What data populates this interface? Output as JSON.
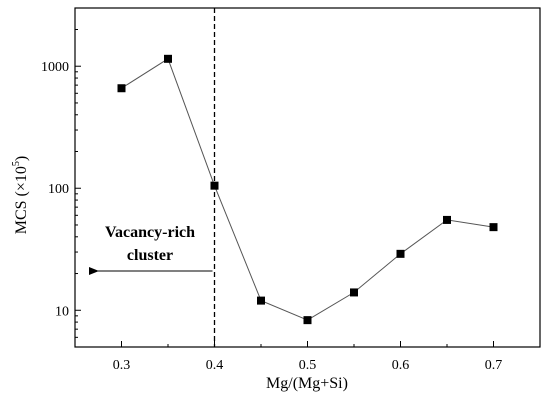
{
  "chart_data": {
    "type": "line",
    "xlabel": "Mg/(Mg+Si)",
    "ylabel": "MCS (×10",
    "ylabel_sup": "5",
    "ylabel_close": ")",
    "y_scale": "log",
    "xlim": [
      0.25,
      0.75
    ],
    "ylim": [
      5,
      3000
    ],
    "x_ticks": [
      "0.3",
      "0.4",
      "0.5",
      "0.6",
      "0.7"
    ],
    "y_ticks": [
      "10",
      "100",
      "1000"
    ],
    "grid": false,
    "series": [
      {
        "marker": "square",
        "x": [
          0.3,
          0.35,
          0.4,
          0.45,
          0.5,
          0.55,
          0.6,
          0.65,
          0.7
        ],
        "y": [
          660,
          1150,
          105,
          12,
          8.3,
          14,
          29,
          55,
          48
        ]
      }
    ],
    "reference_line": {
      "x": 0.4,
      "style": "dashed"
    },
    "annotation": {
      "line1": "Vacancy-rich",
      "line2": "cluster",
      "arrow": "left"
    },
    "colors": {
      "line": "#555555",
      "marker": "#000000",
      "axes": "#000000"
    }
  }
}
